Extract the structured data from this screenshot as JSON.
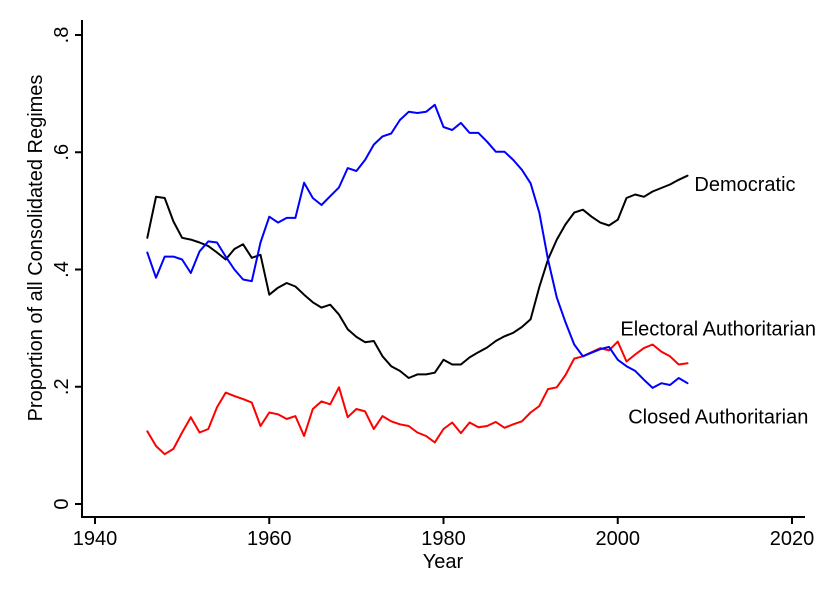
{
  "figure": {
    "background_color": "#ffffff",
    "axis_color": "#000000"
  },
  "chart_data": {
    "type": "line",
    "title": "",
    "xlabel": "Year",
    "ylabel": "Proportion of all Consolidated Regimes",
    "xlim": [
      1938.5,
      2021.5
    ],
    "ylim": [
      -0.02,
      0.826
    ],
    "x_ticks": [
      1940,
      1960,
      1980,
      2000,
      2020
    ],
    "x_tick_labels": [
      "1940",
      "1960",
      "1980",
      "2000",
      "2020"
    ],
    "y_ticks": [
      0,
      0.2,
      0.4,
      0.6,
      0.8
    ],
    "y_tick_labels": [
      "0",
      ".2",
      ".4",
      ".6",
      ".8"
    ],
    "grid": false,
    "legend_position": "inline-annotations",
    "x_start_year": 1946,
    "x_end_year": 2008,
    "series": [
      {
        "name": "Democratic",
        "color": "#000000",
        "values": [
          0.454,
          0.524,
          0.522,
          0.482,
          0.454,
          0.451,
          0.446,
          0.44,
          0.429,
          0.417,
          0.435,
          0.443,
          0.42,
          0.425,
          0.357,
          0.369,
          0.377,
          0.371,
          0.357,
          0.344,
          0.335,
          0.34,
          0.323,
          0.298,
          0.285,
          0.276,
          0.278,
          0.252,
          0.235,
          0.227,
          0.215,
          0.221,
          0.221,
          0.224,
          0.246,
          0.238,
          0.238,
          0.25,
          0.259,
          0.267,
          0.278,
          0.286,
          0.292,
          0.302,
          0.315,
          0.37,
          0.417,
          0.451,
          0.477,
          0.497,
          0.502,
          0.49,
          0.48,
          0.475,
          0.485,
          0.522,
          0.528,
          0.524,
          0.533,
          0.539,
          0.545,
          0.553,
          0.56
        ]
      },
      {
        "name": "Electoral Authoritarian",
        "color": "#ff0000",
        "values": [
          0.124,
          0.099,
          0.085,
          0.094,
          0.122,
          0.148,
          0.122,
          0.128,
          0.165,
          0.19,
          0.184,
          0.179,
          0.173,
          0.133,
          0.156,
          0.153,
          0.145,
          0.15,
          0.116,
          0.162,
          0.175,
          0.17,
          0.199,
          0.148,
          0.162,
          0.158,
          0.128,
          0.15,
          0.141,
          0.136,
          0.133,
          0.122,
          0.116,
          0.105,
          0.128,
          0.139,
          0.121,
          0.139,
          0.131,
          0.133,
          0.14,
          0.13,
          0.136,
          0.141,
          0.156,
          0.167,
          0.196,
          0.199,
          0.22,
          0.248,
          0.252,
          0.259,
          0.266,
          0.262,
          0.277,
          0.243,
          0.255,
          0.266,
          0.272,
          0.26,
          0.252,
          0.238,
          0.24
        ]
      },
      {
        "name": "Closed Authoritarian",
        "color": "#0000ff",
        "values": [
          0.429,
          0.386,
          0.422,
          0.422,
          0.417,
          0.394,
          0.431,
          0.448,
          0.446,
          0.422,
          0.4,
          0.383,
          0.38,
          0.446,
          0.49,
          0.48,
          0.488,
          0.488,
          0.548,
          0.522,
          0.51,
          0.525,
          0.54,
          0.573,
          0.568,
          0.587,
          0.613,
          0.627,
          0.632,
          0.655,
          0.669,
          0.667,
          0.669,
          0.681,
          0.643,
          0.638,
          0.65,
          0.633,
          0.633,
          0.618,
          0.601,
          0.601,
          0.587,
          0.57,
          0.547,
          0.497,
          0.417,
          0.352,
          0.31,
          0.272,
          0.252,
          0.258,
          0.264,
          0.268,
          0.246,
          0.235,
          0.227,
          0.212,
          0.198,
          0.206,
          0.203,
          0.215,
          0.206
        ]
      }
    ],
    "annotations": [
      {
        "text": "Democratic",
        "color": "#000000",
        "year": 2008.8,
        "value": 0.534
      },
      {
        "text": "Electoral Authoritarian",
        "color": "#ff0000",
        "year": 2000.3,
        "value": 0.287
      },
      {
        "text": "Closed Authoritarian",
        "color": "#0000ff",
        "year": 2001.2,
        "value": 0.137
      }
    ]
  }
}
